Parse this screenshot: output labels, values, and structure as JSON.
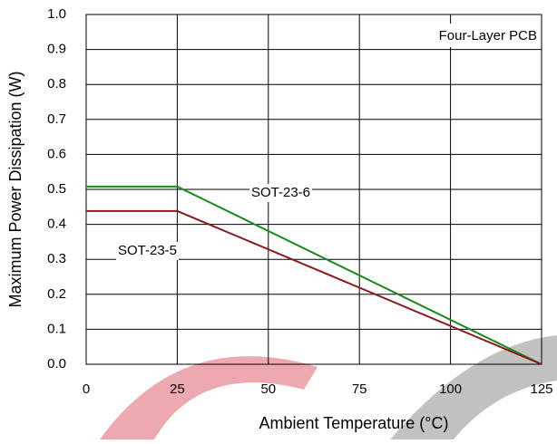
{
  "chart_data": {
    "type": "line",
    "xlabel": "Ambient Temperature (°C)",
    "ylabel": "Maximum Power Dissipation (W)",
    "annotation": "Four-Layer PCB",
    "x": [
      0,
      25,
      125
    ],
    "series": [
      {
        "name": "SOT-23-6",
        "color": "#1a8a1a",
        "values": [
          0.508,
          0.508,
          0
        ]
      },
      {
        "name": "SOT-23-5",
        "color": "#8b1a1a",
        "values": [
          0.438,
          0.438,
          0
        ]
      }
    ],
    "xlim": [
      0,
      125
    ],
    "xticks": [
      0,
      25,
      50,
      75,
      100,
      125
    ],
    "ylim": [
      0,
      1
    ],
    "yticks": [
      {
        "value": 0,
        "label": "0.0"
      },
      0.1,
      0.2,
      0.3,
      0.4,
      0.5,
      0.6,
      0.7,
      0.8,
      0.9,
      {
        "value": 1,
        "label": "1.0"
      }
    ],
    "grid": true
  }
}
